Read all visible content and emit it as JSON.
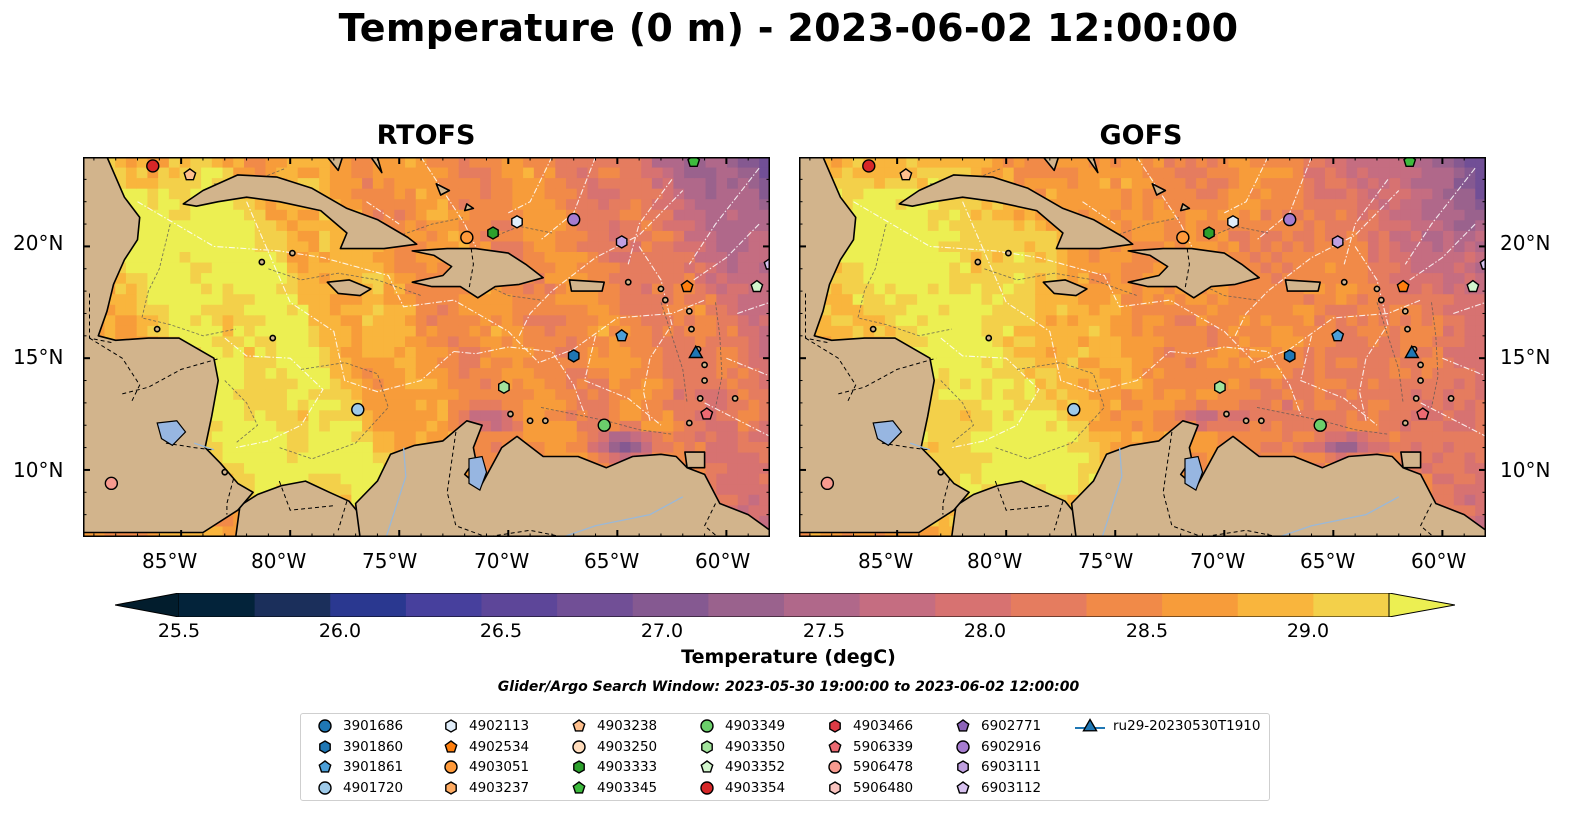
{
  "title": "Temperature (0 m) - 2023-06-02 12:00:00",
  "panels": [
    {
      "title": "RTOFS",
      "seed": 3
    },
    {
      "title": "GOFS",
      "seed": 11
    }
  ],
  "lon_ticks": [
    "85°W",
    "80°W",
    "75°W",
    "70°W",
    "65°W",
    "60°W"
  ],
  "lat_ticks": [
    "20°N",
    "15°N",
    "10°N"
  ],
  "colorbar": {
    "label": "Temperature (degC)",
    "ticks": [
      "25.5",
      "26.0",
      "26.5",
      "27.0",
      "27.5",
      "28.0",
      "28.5",
      "29.0"
    ],
    "colors": [
      "#03233a",
      "#1b2f5b",
      "#2a3890",
      "#47409d",
      "#5d4699",
      "#714f96",
      "#855991",
      "#9a628d",
      "#b0688a",
      "#c56d81",
      "#d77271",
      "#e57c5f",
      "#f18a48",
      "#f79c3a",
      "#f9b53d",
      "#f3d04a"
    ],
    "under_color": "#021d2d",
    "over_color": "#ecef52"
  },
  "search_window": "Glider/Argo Search Window: 2023-05-30 19:00:00 to 2023-06-02 12:00:00",
  "legend": [
    {
      "label": "3901686",
      "marker": "circle",
      "color": "#1f77b4"
    },
    {
      "label": "3901860",
      "marker": "hexagon",
      "color": "#1f77b4"
    },
    {
      "label": "3901861",
      "marker": "pentagon",
      "color": "#4c9fd8"
    },
    {
      "label": "4901720",
      "marker": "circle",
      "color": "#9ecae9"
    },
    {
      "label": "4902113",
      "marker": "hexagon",
      "color": "#e1eefa"
    },
    {
      "label": "4902534",
      "marker": "pentagon",
      "color": "#ff7f0e"
    },
    {
      "label": "4903051",
      "marker": "circle",
      "color": "#ff9a3a"
    },
    {
      "label": "4903237",
      "marker": "hexagon",
      "color": "#ffab62"
    },
    {
      "label": "4903238",
      "marker": "pentagon",
      "color": "#ffc08d"
    },
    {
      "label": "4903250",
      "marker": "circle",
      "color": "#ffdcbc"
    },
    {
      "label": "4903333",
      "marker": "hexagon",
      "color": "#2ca02c"
    },
    {
      "label": "4903345",
      "marker": "pentagon",
      "color": "#3dbb3d"
    },
    {
      "label": "4903349",
      "marker": "circle",
      "color": "#6bcf6b"
    },
    {
      "label": "4903350",
      "marker": "hexagon",
      "color": "#a2e39c"
    },
    {
      "label": "4903352",
      "marker": "pentagon",
      "color": "#d2f6cd"
    },
    {
      "label": "4903354",
      "marker": "circle",
      "color": "#d62728"
    },
    {
      "label": "4903466",
      "marker": "hexagon",
      "color": "#dd3b45"
    },
    {
      "label": "5906339",
      "marker": "pentagon",
      "color": "#ec6a72"
    },
    {
      "label": "5906478",
      "marker": "circle",
      "color": "#f79a8f"
    },
    {
      "label": "5906480",
      "marker": "hexagon",
      "color": "#f9c3bf"
    },
    {
      "label": "6902771",
      "marker": "pentagon",
      "color": "#8c63b8"
    },
    {
      "label": "6902916",
      "marker": "circle",
      "color": "#a67ccf"
    },
    {
      "label": "6903111",
      "marker": "hexagon",
      "color": "#c0a0e0"
    },
    {
      "label": "6903112",
      "marker": "pentagon",
      "color": "#d8c2f0"
    },
    {
      "label": "ru29-20230530T1910",
      "marker": "triangle",
      "color": "#1f77b4"
    }
  ],
  "platforms": [
    {
      "id": "4903354",
      "lon": -86.3,
      "lat": 23.6
    },
    {
      "id": "4903238",
      "lon": -84.6,
      "lat": 23.2
    },
    {
      "id": "4903345",
      "lon": -61.5,
      "lat": 23.8
    },
    {
      "id": "4902113",
      "lon": -69.6,
      "lat": 21.1
    },
    {
      "id": "6902916",
      "lon": -67.0,
      "lat": 21.2
    },
    {
      "id": "6903111",
      "lon": -64.8,
      "lat": 20.2
    },
    {
      "id": "4903333",
      "lon": -70.7,
      "lat": 20.6
    },
    {
      "id": "4903051",
      "lon": -71.9,
      "lat": 20.4
    },
    {
      "id": "6903112",
      "lon": -58.0,
      "lat": 19.2
    },
    {
      "id": "4903352",
      "lon": -58.6,
      "lat": 18.2
    },
    {
      "id": "4902534",
      "lon": -61.8,
      "lat": 18.2
    },
    {
      "id": "3901861",
      "lon": -64.8,
      "lat": 16.0
    },
    {
      "id": "3901860",
      "lon": -67.0,
      "lat": 15.1
    },
    {
      "id": "ru29-20230530T1910",
      "lon": -61.4,
      "lat": 15.2
    },
    {
      "id": "4903350",
      "lon": -70.2,
      "lat": 13.7
    },
    {
      "id": "4901720",
      "lon": -76.9,
      "lat": 12.7
    },
    {
      "id": "4903349",
      "lon": -65.6,
      "lat": 12.0
    },
    {
      "id": "5906339",
      "lon": -60.9,
      "lat": 12.5
    },
    {
      "id": "5906478",
      "lon": -88.2,
      "lat": 9.4
    }
  ]
}
